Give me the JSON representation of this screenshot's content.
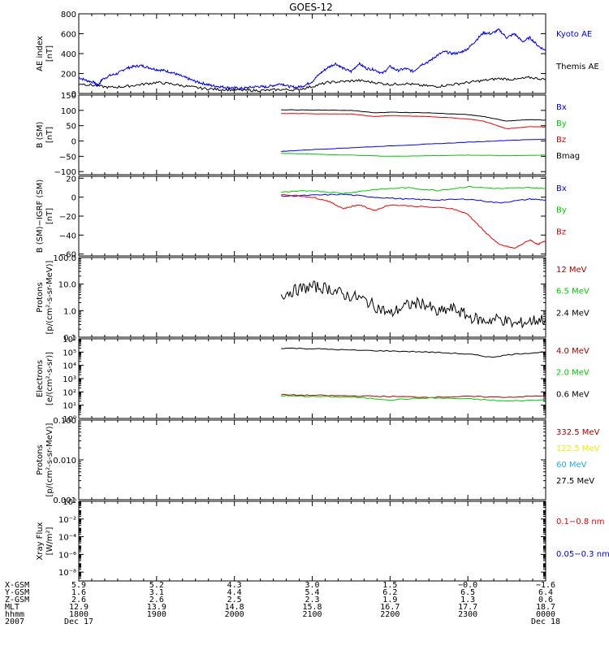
{
  "title": "GOES-12",
  "x_range": [
    "2007-12-17T18:00",
    "2007-12-18T00:00"
  ],
  "colors": {
    "blue": "#0000ee",
    "green": "#00cc00",
    "red": "#ee0000",
    "darkred": "#aa0000",
    "yellow": "#eeee00",
    "cyan": "#22aaee",
    "black": "#000000"
  },
  "chart_data": [
    {
      "type": "line",
      "name": "panel-ae",
      "ylabel": [
        "AE index",
        "[nT]"
      ],
      "ylim": [
        0,
        800
      ],
      "log": false,
      "yticks": [
        {
          "v": 0,
          "t": "0"
        },
        {
          "v": 200,
          "t": "200"
        },
        {
          "v": 400,
          "t": "400"
        },
        {
          "v": 600,
          "t": "600"
        },
        {
          "v": 800,
          "t": "800"
        }
      ],
      "series": [
        {
          "name": "Kyoto AE",
          "color": "#0000ee",
          "x": [
            0,
            0.1,
            0.2,
            0.25,
            0.3,
            0.4,
            0.5,
            0.6,
            0.7,
            0.8,
            0.9,
            1.0,
            1.1,
            1.2,
            1.3,
            1.4,
            1.5,
            1.6,
            1.7,
            1.8,
            1.9,
            2.0,
            2.1,
            2.2,
            2.3,
            2.4,
            2.5,
            2.6,
            2.7,
            2.8,
            2.9,
            3.0,
            3.1,
            3.2,
            3.3,
            3.4,
            3.5,
            3.6,
            3.7,
            3.8,
            3.9,
            4.0,
            4.1,
            4.2,
            4.3,
            4.4,
            4.5,
            4.6,
            4.7,
            4.8,
            4.9,
            5.0,
            5.1,
            5.2,
            5.3,
            5.4,
            5.5,
            5.6,
            5.7,
            5.8,
            5.9,
            6.0
          ],
          "y": [
            160,
            130,
            110,
            80,
            140,
            180,
            200,
            250,
            270,
            280,
            260,
            240,
            230,
            210,
            180,
            150,
            120,
            100,
            80,
            70,
            60,
            55,
            50,
            60,
            70,
            65,
            80,
            100,
            70,
            60,
            80,
            120,
            200,
            260,
            300,
            250,
            220,
            300,
            250,
            240,
            200,
            270,
            230,
            250,
            220,
            290,
            320,
            380,
            420,
            400,
            410,
            450,
            530,
            610,
            600,
            640,
            560,
            600,
            520,
            560,
            480,
            430
          ]
        },
        {
          "name": "Themis AE",
          "color": "#000000",
          "x": [
            0,
            0.2,
            0.4,
            0.6,
            0.8,
            1.0,
            1.2,
            1.4,
            1.6,
            1.8,
            2.0,
            2.2,
            2.4,
            2.6,
            2.8,
            3.0,
            3.2,
            3.4,
            3.6,
            3.8,
            4.0,
            4.2,
            4.4,
            4.6,
            4.8,
            5.0,
            5.2,
            5.4,
            5.6,
            5.8,
            6.0
          ],
          "y": [
            100,
            80,
            60,
            70,
            90,
            110,
            95,
            70,
            50,
            40,
            35,
            30,
            30,
            40,
            35,
            70,
            110,
            120,
            130,
            110,
            90,
            100,
            80,
            70,
            90,
            110,
            130,
            150,
            140,
            160,
            140
          ]
        }
      ]
    },
    {
      "type": "line",
      "name": "panel-b-sm",
      "ylabel": [
        "B (SM)",
        "[nT]"
      ],
      "ylim": [
        -110,
        150
      ],
      "log": false,
      "yticks": [
        {
          "v": 150,
          "t": "150"
        },
        {
          "v": 100,
          "t": "100"
        },
        {
          "v": 50,
          "t": "50"
        },
        {
          "v": 0,
          "t": "0"
        },
        {
          "v": -50,
          "t": "−50"
        },
        {
          "v": -100,
          "t": "−100"
        }
      ],
      "series": [
        {
          "name": "Bx",
          "color": "#0000ee",
          "x": [
            2.6,
            3.0,
            3.5,
            4.0,
            4.5,
            5.0,
            5.5,
            6.0
          ],
          "y": [
            -34,
            -28,
            -22,
            -16,
            -10,
            -4,
            2,
            6
          ]
        },
        {
          "name": "By",
          "color": "#00cc00",
          "x": [
            2.6,
            3.0,
            3.5,
            4.0,
            4.5,
            5.0,
            5.5,
            6.0
          ],
          "y": [
            -40,
            -43,
            -46,
            -50,
            -48,
            -46,
            -48,
            -46
          ]
        },
        {
          "name": "Bz",
          "color": "#ee0000",
          "x": [
            2.6,
            3.0,
            3.5,
            3.8,
            4.0,
            4.5,
            5.0,
            5.2,
            5.5,
            5.8,
            6.0
          ],
          "y": [
            90,
            89,
            88,
            80,
            83,
            80,
            72,
            65,
            40,
            47,
            46
          ]
        },
        {
          "name": "Bmag",
          "color": "#000000",
          "x": [
            2.6,
            3.0,
            3.5,
            3.8,
            4.0,
            4.5,
            5.0,
            5.2,
            5.5,
            5.8,
            6.0
          ],
          "y": [
            102,
            101,
            100,
            92,
            94,
            92,
            86,
            80,
            65,
            70,
            68
          ]
        }
      ]
    },
    {
      "type": "line",
      "name": "panel-b-igrf",
      "ylabel": [
        "B (SM)−IGRF (SM)",
        "[nT]"
      ],
      "ylim": [
        -62,
        22
      ],
      "log": false,
      "yticks": [
        {
          "v": 20,
          "t": "20"
        },
        {
          "v": 0,
          "t": "0"
        },
        {
          "v": -20,
          "t": "−20"
        },
        {
          "v": -40,
          "t": "−40"
        },
        {
          "v": -60,
          "t": "−60"
        }
      ],
      "series": [
        {
          "name": "Bx",
          "color": "#0000ee",
          "x": [
            2.6,
            3.0,
            3.4,
            3.8,
            4.2,
            4.6,
            5.0,
            5.4,
            5.8,
            6.0
          ],
          "y": [
            1,
            2,
            3,
            0,
            -2,
            -3,
            -2,
            -6,
            -2,
            -3
          ]
        },
        {
          "name": "By",
          "color": "#00cc00",
          "x": [
            2.6,
            3.0,
            3.4,
            3.8,
            4.2,
            4.6,
            5.0,
            5.4,
            5.8,
            6.0
          ],
          "y": [
            5,
            7,
            4,
            8,
            10,
            7,
            11,
            9,
            10,
            9
          ]
        },
        {
          "name": "Bz",
          "color": "#ee0000",
          "x": [
            2.6,
            3.0,
            3.2,
            3.4,
            3.6,
            3.8,
            4.0,
            4.4,
            4.8,
            5.0,
            5.2,
            5.4,
            5.6,
            5.8,
            5.9,
            6.0
          ],
          "y": [
            3,
            0,
            -4,
            -12,
            -8,
            -14,
            -8,
            -10,
            -12,
            -18,
            -35,
            -50,
            -54,
            -45,
            -50,
            -46
          ]
        }
      ]
    },
    {
      "type": "line",
      "name": "panel-protons-low",
      "ylabel": [
        "Protons",
        "[p/(cm²-s-sr-MeV)]"
      ],
      "ylim": [
        0.1,
        100
      ],
      "log": true,
      "yticks": [
        {
          "v": 100,
          "t": "100.0"
        },
        {
          "v": 10,
          "t": "10.0"
        },
        {
          "v": 1,
          "t": "1.0"
        },
        {
          "v": 0.1,
          "t": "0.1"
        }
      ],
      "series": [
        {
          "name": "12 MeV",
          "color": "#aa0000",
          "x": [],
          "y": []
        },
        {
          "name": "6.5 MeV",
          "color": "#00cc00",
          "x": [],
          "y": []
        },
        {
          "name": "2.4 MeV",
          "color": "#000000",
          "x": [
            2.6,
            2.8,
            3.0,
            3.2,
            3.4,
            3.6,
            3.8,
            4.0,
            4.2,
            4.4,
            4.6,
            4.8,
            5.0,
            5.2,
            5.4,
            5.6,
            5.8,
            6.0
          ],
          "y": [
            4,
            6,
            8,
            7,
            4,
            3,
            1.5,
            0.7,
            1.5,
            2,
            0.8,
            1.2,
            0.6,
            0.4,
            0.5,
            0.3,
            0.4,
            0.5
          ]
        }
      ]
    },
    {
      "type": "line",
      "name": "panel-electrons",
      "ylabel": [
        "Electrons",
        "[e/(cm²-s-sr)]"
      ],
      "ylim": [
        1,
        1000000
      ],
      "log": true,
      "yticks": [
        {
          "v": 1000000,
          "t": "10⁶"
        },
        {
          "v": 100000,
          "t": "10⁵"
        },
        {
          "v": 10000,
          "t": "10⁴"
        },
        {
          "v": 1000,
          "t": "10³"
        },
        {
          "v": 100,
          "t": "10²"
        },
        {
          "v": 10,
          "t": "10¹"
        },
        {
          "v": 1,
          "t": "10⁰"
        }
      ],
      "series": [
        {
          "name": "4.0 MeV",
          "color": "#aa0000",
          "x": [
            2.6,
            3.0,
            3.5,
            4.0,
            4.5,
            5.0,
            5.5,
            6.0
          ],
          "y": [
            60,
            55,
            50,
            45,
            40,
            45,
            40,
            50
          ]
        },
        {
          "name": "2.0 MeV",
          "color": "#00cc00",
          "x": [
            2.6,
            3.0,
            3.5,
            4.0,
            4.5,
            5.0,
            5.5,
            6.0
          ],
          "y": [
            50,
            45,
            40,
            25,
            35,
            30,
            20,
            25
          ]
        },
        {
          "name": "0.6 MeV",
          "color": "#000000",
          "x": [
            2.6,
            3.0,
            3.5,
            4.0,
            4.5,
            5.0,
            5.3,
            5.6,
            6.0
          ],
          "y": [
            200000,
            180000,
            140000,
            120000,
            100000,
            70000,
            40000,
            70000,
            100000
          ]
        }
      ]
    },
    {
      "type": "line",
      "name": "panel-protons-high",
      "ylabel": [
        "Protons",
        "[p/(cm²-s-sr-MeV)]"
      ],
      "ylim": [
        0.001,
        0.1
      ],
      "log": true,
      "yticks": [
        {
          "v": 0.1,
          "t": "0.100"
        },
        {
          "v": 0.01,
          "t": "0.010"
        },
        {
          "v": 0.001,
          "t": "0.001"
        }
      ],
      "series": [
        {
          "name": "332.5 MeV",
          "color": "#aa0000",
          "x": [],
          "y": []
        },
        {
          "name": "122.5 MeV",
          "color": "#eeee00",
          "x": [],
          "y": []
        },
        {
          "name": "60 MeV",
          "color": "#22aaee",
          "x": [],
          "y": []
        },
        {
          "name": "27.5 MeV",
          "color": "#000000",
          "x": [],
          "y": []
        }
      ]
    },
    {
      "type": "line",
      "name": "panel-xray",
      "ylabel": [
        "Xray  Flux",
        "[W/m²]"
      ],
      "ylim": [
        1e-09,
        1
      ],
      "log": true,
      "yticks": [
        {
          "v": 1,
          "t": "10⁰"
        },
        {
          "v": 0.01,
          "t": "10⁻²"
        },
        {
          "v": 0.0001,
          "t": "10⁻⁴"
        },
        {
          "v": 1e-06,
          "t": "10⁻⁶"
        },
        {
          "v": 1e-08,
          "t": "10⁻⁸"
        }
      ],
      "series": [
        {
          "name": "0.1−0.8 nm",
          "color": "#ee0000",
          "x": [],
          "y": []
        },
        {
          "name": "0.05−0.3 nm",
          "color": "#0000ee",
          "x": [],
          "y": []
        }
      ]
    }
  ],
  "ephemeris": {
    "rows": [
      {
        "label": "X-GSM",
        "values": [
          "5.9",
          "5.2",
          "4.3",
          "3.0",
          "1.5",
          "−0.0",
          "−1.6"
        ]
      },
      {
        "label": "Y-GSM",
        "values": [
          "1.6",
          "3.1",
          "4.4",
          "5.4",
          "6.2",
          "6.5",
          "6.4"
        ]
      },
      {
        "label": "Z-GSM",
        "values": [
          "2.6",
          "2.6",
          "2.5",
          "2.3",
          "1.9",
          "1.3",
          "0.6"
        ]
      },
      {
        "label": "MLT",
        "values": [
          "12.9",
          "13.9",
          "14.8",
          "15.8",
          "16.7",
          "17.7",
          "18.7"
        ]
      },
      {
        "label": "hhmm",
        "values": [
          "1800",
          "1900",
          "2000",
          "2100",
          "2200",
          "2300",
          "0000"
        ]
      },
      {
        "label": "2007",
        "values": [
          "Dec 17",
          "",
          "",
          "",
          "",
          "",
          "Dec 18"
        ]
      }
    ]
  }
}
